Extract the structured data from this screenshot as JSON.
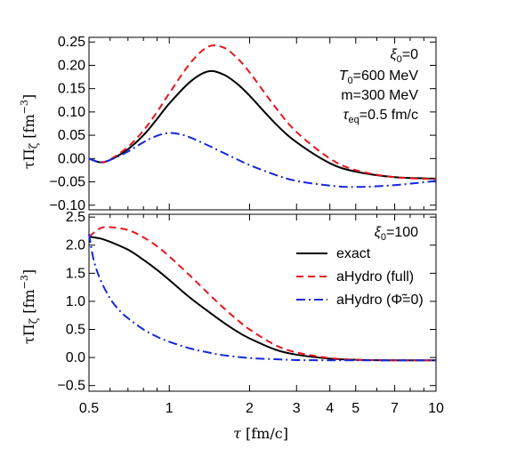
{
  "chart_data": [
    {
      "type": "line",
      "panel": "top",
      "x_scale": "log",
      "xlim": [
        0.5,
        10
      ],
      "ylim": [
        -0.11,
        0.26
      ],
      "x_ticks": [
        0.5,
        1,
        2,
        3,
        4,
        5,
        7,
        10
      ],
      "y_ticks": [
        -0.1,
        -0.05,
        0.0,
        0.05,
        0.1,
        0.15,
        0.2,
        0.25
      ],
      "y_tick_labels": [
        "−0.10",
        "−0.05",
        "0.00",
        "0.05",
        "0.10",
        "0.15",
        "0.20",
        "0.25"
      ],
      "ylabel": "τΠζ [fm⁻³]",
      "annotations": [
        "ξ0=0",
        "T0=600 MeV",
        "m=300 MeV",
        "τeq=0.5 fm/c"
      ],
      "series": [
        {
          "color": "#000000",
          "dash": "solid",
          "x": [
            0.5,
            0.55,
            0.6,
            0.7,
            0.8,
            0.9,
            1.0,
            1.2,
            1.4,
            1.6,
            1.8,
            2.0,
            2.5,
            3.0,
            4.0,
            5.0,
            7.0,
            10.0
          ],
          "y": [
            0.0,
            -0.008,
            -0.003,
            0.02,
            0.05,
            0.085,
            0.118,
            0.165,
            0.187,
            0.18,
            0.16,
            0.135,
            0.075,
            0.035,
            -0.01,
            -0.028,
            -0.04,
            -0.043
          ]
        },
        {
          "color": "#e8141c",
          "dash": "dashed",
          "x": [
            0.5,
            0.55,
            0.6,
            0.7,
            0.8,
            0.9,
            1.0,
            1.2,
            1.4,
            1.6,
            1.8,
            2.0,
            2.5,
            3.0,
            4.0,
            5.0,
            7.0,
            10.0
          ],
          "y": [
            0.0,
            -0.008,
            -0.002,
            0.025,
            0.06,
            0.1,
            0.14,
            0.205,
            0.24,
            0.238,
            0.215,
            0.185,
            0.11,
            0.057,
            0.0,
            -0.025,
            -0.04,
            -0.044
          ]
        },
        {
          "color": "#1428dc",
          "dash": "dashdot",
          "x": [
            0.5,
            0.55,
            0.6,
            0.7,
            0.8,
            0.9,
            1.0,
            1.1,
            1.2,
            1.4,
            1.6,
            1.8,
            2.0,
            2.5,
            3.0,
            4.0,
            5.0,
            7.0,
            10.0
          ],
          "y": [
            0.0,
            -0.008,
            -0.003,
            0.015,
            0.035,
            0.049,
            0.055,
            0.052,
            0.045,
            0.028,
            0.012,
            -0.002,
            -0.014,
            -0.035,
            -0.048,
            -0.058,
            -0.061,
            -0.057,
            -0.048
          ]
        }
      ]
    },
    {
      "type": "line",
      "panel": "bottom",
      "x_scale": "log",
      "xlim": [
        0.5,
        10
      ],
      "ylim": [
        -0.6,
        2.55
      ],
      "x_ticks": [
        0.5,
        1,
        2,
        3,
        4,
        5,
        7,
        10
      ],
      "x_tick_labels": [
        "0.5",
        "1",
        "2",
        "3",
        "4",
        "5",
        "7",
        "10"
      ],
      "y_ticks": [
        -0.5,
        0.0,
        0.5,
        1.0,
        1.5,
        2.0,
        2.5
      ],
      "y_tick_labels": [
        "−0.5",
        "0.0",
        "0.5",
        "1.0",
        "1.5",
        "2.0",
        "2.5"
      ],
      "xlabel": "τ [fm/c]",
      "ylabel": "τΠζ [fm⁻³]",
      "annotations": [
        "ξ0=100"
      ],
      "legend": {
        "placement": "top-right",
        "entries": [
          "exact",
          "aHydro (full)",
          "aHydro (Φ̃=0)"
        ]
      },
      "series": [
        {
          "name": "exact",
          "color": "#000000",
          "dash": "solid",
          "x": [
            0.5,
            0.55,
            0.6,
            0.7,
            0.8,
            0.9,
            1.0,
            1.2,
            1.4,
            1.6,
            1.8,
            2.0,
            2.5,
            3.0,
            4.0,
            5.0,
            7.0,
            10.0
          ],
          "y": [
            2.15,
            2.12,
            2.06,
            1.92,
            1.74,
            1.56,
            1.38,
            1.06,
            0.82,
            0.62,
            0.46,
            0.34,
            0.14,
            0.05,
            -0.02,
            -0.04,
            -0.05,
            -0.05
          ]
        },
        {
          "name": "aHydro (full)",
          "color": "#e8141c",
          "dash": "dashed",
          "x": [
            0.5,
            0.55,
            0.6,
            0.7,
            0.8,
            0.9,
            1.0,
            1.2,
            1.4,
            1.6,
            1.8,
            2.0,
            2.5,
            3.0,
            4.0,
            5.0,
            7.0,
            10.0
          ],
          "y": [
            2.15,
            2.3,
            2.32,
            2.27,
            2.14,
            1.98,
            1.8,
            1.45,
            1.14,
            0.88,
            0.67,
            0.5,
            0.22,
            0.09,
            -0.01,
            -0.04,
            -0.05,
            -0.05
          ]
        },
        {
          "name": "aHydro (Φ̃=0)",
          "color": "#1428dc",
          "dash": "dashdot",
          "x": [
            0.5,
            0.52,
            0.55,
            0.6,
            0.65,
            0.7,
            0.8,
            0.9,
            1.0,
            1.2,
            1.4,
            1.6,
            2.0,
            2.5,
            3.0,
            4.0,
            5.0,
            7.0,
            10.0
          ],
          "y": [
            2.2,
            1.75,
            1.4,
            1.05,
            0.84,
            0.7,
            0.5,
            0.37,
            0.28,
            0.16,
            0.09,
            0.04,
            -0.01,
            -0.03,
            -0.045,
            -0.05,
            -0.05,
            -0.05,
            -0.05
          ]
        }
      ]
    }
  ]
}
